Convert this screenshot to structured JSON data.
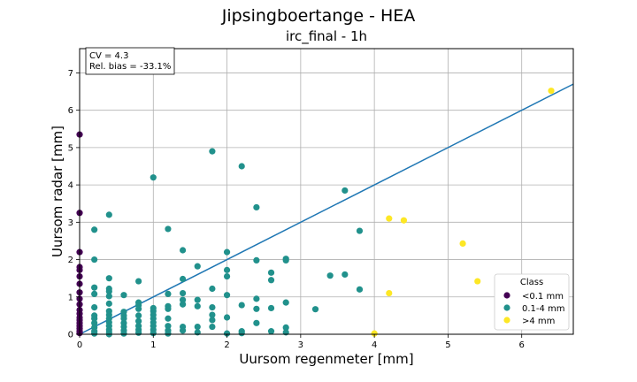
{
  "chart_data": {
    "type": "scatter",
    "title": "Jipsingboertange - HEA",
    "subtitle": "irc_final - 1h",
    "xlabel": "Uursom regenmeter [mm]",
    "ylabel": "Uursom radar [mm]",
    "xlim": [
      0,
      6.7
    ],
    "ylim": [
      0,
      7.65
    ],
    "xticks": [
      "0",
      "1",
      "2",
      "3",
      "4",
      "5",
      "6"
    ],
    "yticks": [
      "0",
      "1",
      "2",
      "3",
      "4",
      "5",
      "6",
      "7"
    ],
    "grid": true,
    "stats": [
      "CV = 4.3",
      "Rel. bias = -33.1%"
    ],
    "fit_line": {
      "x": [
        0,
        6.7
      ],
      "y": [
        0,
        6.7
      ]
    },
    "legend": {
      "title": "Class",
      "position": "lower-right"
    },
    "series": [
      {
        "name": "<0.1 mm",
        "color": "#440154",
        "points": [
          [
            0,
            5.35
          ],
          [
            0,
            3.25
          ],
          [
            0,
            2.2
          ],
          [
            0,
            1.8
          ],
          [
            0,
            1.72
          ],
          [
            0,
            1.55
          ],
          [
            0,
            1.35
          ],
          [
            0,
            1.12
          ],
          [
            0,
            0.95
          ],
          [
            0,
            0.8
          ],
          [
            0,
            0.65
          ],
          [
            0,
            0.55
          ],
          [
            0,
            0.45
          ],
          [
            0,
            0.38
          ],
          [
            0,
            0.3
          ],
          [
            0,
            0.22
          ],
          [
            0,
            0.15
          ],
          [
            0,
            0.08
          ],
          [
            0,
            0.03
          ]
        ]
      },
      {
        "name": "0.1-4 mm",
        "color": "#21918c",
        "points": [
          [
            0.2,
            2.8
          ],
          [
            0.2,
            2.0
          ],
          [
            0.2,
            1.25
          ],
          [
            0.2,
            1.08
          ],
          [
            0.2,
            0.72
          ],
          [
            0.2,
            0.5
          ],
          [
            0.2,
            0.42
          ],
          [
            0.2,
            0.3
          ],
          [
            0.2,
            0.18
          ],
          [
            0.2,
            0.08
          ],
          [
            0.2,
            0.02
          ],
          [
            0.4,
            3.2
          ],
          [
            0.4,
            1.5
          ],
          [
            0.4,
            1.22
          ],
          [
            0.4,
            1.15
          ],
          [
            0.4,
            1.02
          ],
          [
            0.4,
            0.82
          ],
          [
            0.4,
            0.62
          ],
          [
            0.4,
            0.52
          ],
          [
            0.4,
            0.42
          ],
          [
            0.4,
            0.32
          ],
          [
            0.4,
            0.22
          ],
          [
            0.4,
            0.12
          ],
          [
            0.4,
            0.05
          ],
          [
            0.4,
            0.0
          ],
          [
            0.6,
            1.05
          ],
          [
            0.6,
            0.6
          ],
          [
            0.6,
            0.5
          ],
          [
            0.6,
            0.42
          ],
          [
            0.6,
            0.3
          ],
          [
            0.6,
            0.2
          ],
          [
            0.6,
            0.1
          ],
          [
            0.6,
            0.02
          ],
          [
            0.8,
            1.42
          ],
          [
            0.8,
            0.85
          ],
          [
            0.8,
            0.78
          ],
          [
            0.8,
            0.68
          ],
          [
            0.8,
            0.5
          ],
          [
            0.8,
            0.35
          ],
          [
            0.8,
            0.22
          ],
          [
            0.8,
            0.12
          ],
          [
            0.8,
            0.04
          ],
          [
            1.0,
            4.2
          ],
          [
            1.0,
            0.7
          ],
          [
            1.0,
            0.62
          ],
          [
            1.0,
            0.52
          ],
          [
            1.0,
            0.42
          ],
          [
            1.0,
            0.32
          ],
          [
            1.0,
            0.22
          ],
          [
            1.0,
            0.12
          ],
          [
            1.0,
            0.03
          ],
          [
            1.2,
            2.82
          ],
          [
            1.2,
            1.08
          ],
          [
            1.2,
            0.75
          ],
          [
            1.2,
            0.68
          ],
          [
            1.2,
            0.42
          ],
          [
            1.2,
            0.22
          ],
          [
            1.2,
            0.1
          ],
          [
            1.2,
            0.02
          ],
          [
            1.4,
            2.25
          ],
          [
            1.4,
            1.48
          ],
          [
            1.4,
            1.1
          ],
          [
            1.4,
            0.92
          ],
          [
            1.4,
            0.8
          ],
          [
            1.4,
            0.2
          ],
          [
            1.4,
            0.1
          ],
          [
            1.6,
            1.82
          ],
          [
            1.6,
            0.92
          ],
          [
            1.6,
            0.75
          ],
          [
            1.6,
            0.2
          ],
          [
            1.6,
            0.05
          ],
          [
            1.8,
            4.9
          ],
          [
            1.8,
            1.22
          ],
          [
            1.8,
            0.72
          ],
          [
            1.8,
            0.52
          ],
          [
            1.8,
            0.38
          ],
          [
            1.8,
            0.2
          ],
          [
            2.0,
            2.2
          ],
          [
            2.0,
            1.72
          ],
          [
            2.0,
            1.55
          ],
          [
            2.0,
            1.05
          ],
          [
            2.0,
            0.45
          ],
          [
            2.0,
            0.02
          ],
          [
            2.2,
            4.5
          ],
          [
            2.2,
            0.78
          ],
          [
            2.2,
            0.08
          ],
          [
            2.2,
            0.03
          ],
          [
            2.4,
            3.4
          ],
          [
            2.4,
            1.98
          ],
          [
            2.4,
            0.95
          ],
          [
            2.4,
            0.68
          ],
          [
            2.4,
            0.3
          ],
          [
            2.6,
            1.65
          ],
          [
            2.6,
            1.45
          ],
          [
            2.6,
            0.7
          ],
          [
            2.6,
            0.08
          ],
          [
            2.8,
            2.02
          ],
          [
            2.8,
            1.98
          ],
          [
            2.8,
            0.85
          ],
          [
            2.8,
            0.18
          ],
          [
            2.8,
            0.05
          ],
          [
            3.2,
            0.67
          ],
          [
            3.4,
            1.57
          ],
          [
            3.6,
            3.85
          ],
          [
            3.6,
            1.6
          ],
          [
            3.8,
            2.77
          ],
          [
            3.8,
            1.2
          ]
        ]
      },
      {
        "name": ">4 mm",
        "color": "#fde725",
        "points": [
          [
            6.4,
            6.52
          ],
          [
            4.2,
            3.1
          ],
          [
            4.4,
            3.05
          ],
          [
            5.2,
            2.43
          ],
          [
            5.4,
            1.42
          ],
          [
            4.2,
            1.1
          ],
          [
            4.0,
            0.02
          ]
        ]
      }
    ]
  }
}
